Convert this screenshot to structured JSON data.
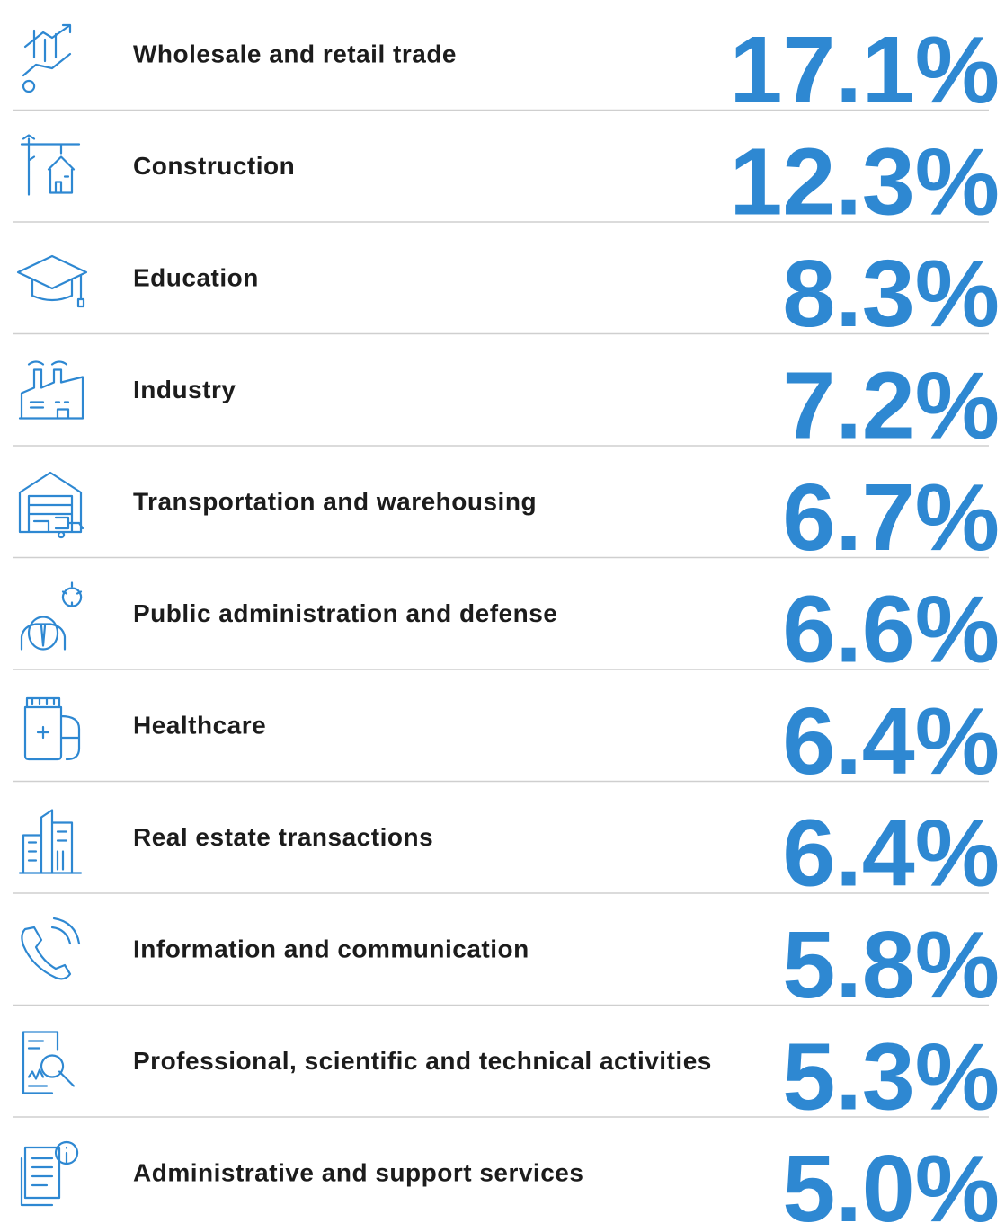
{
  "rows": [
    {
      "label": "Wholesale and retail trade",
      "value": "17.1%"
    },
    {
      "label": "Construction",
      "value": "12.3%"
    },
    {
      "label": "Education",
      "value": "8.3%"
    },
    {
      "label": "Industry",
      "value": "7.2%"
    },
    {
      "label": "Transportation and warehousing",
      "value": "6.7%"
    },
    {
      "label": "Public administration and defense",
      "value": "6.6%"
    },
    {
      "label": "Healthcare",
      "value": "6.4%"
    },
    {
      "label": "Real estate transactions",
      "value": "6.4%"
    },
    {
      "label": "Information and communication",
      "value": "5.8%"
    },
    {
      "label": "Professional, scientific and technical activities",
      "value": "5.3%"
    },
    {
      "label": "Administrative and support services",
      "value": "5.0%"
    }
  ]
}
